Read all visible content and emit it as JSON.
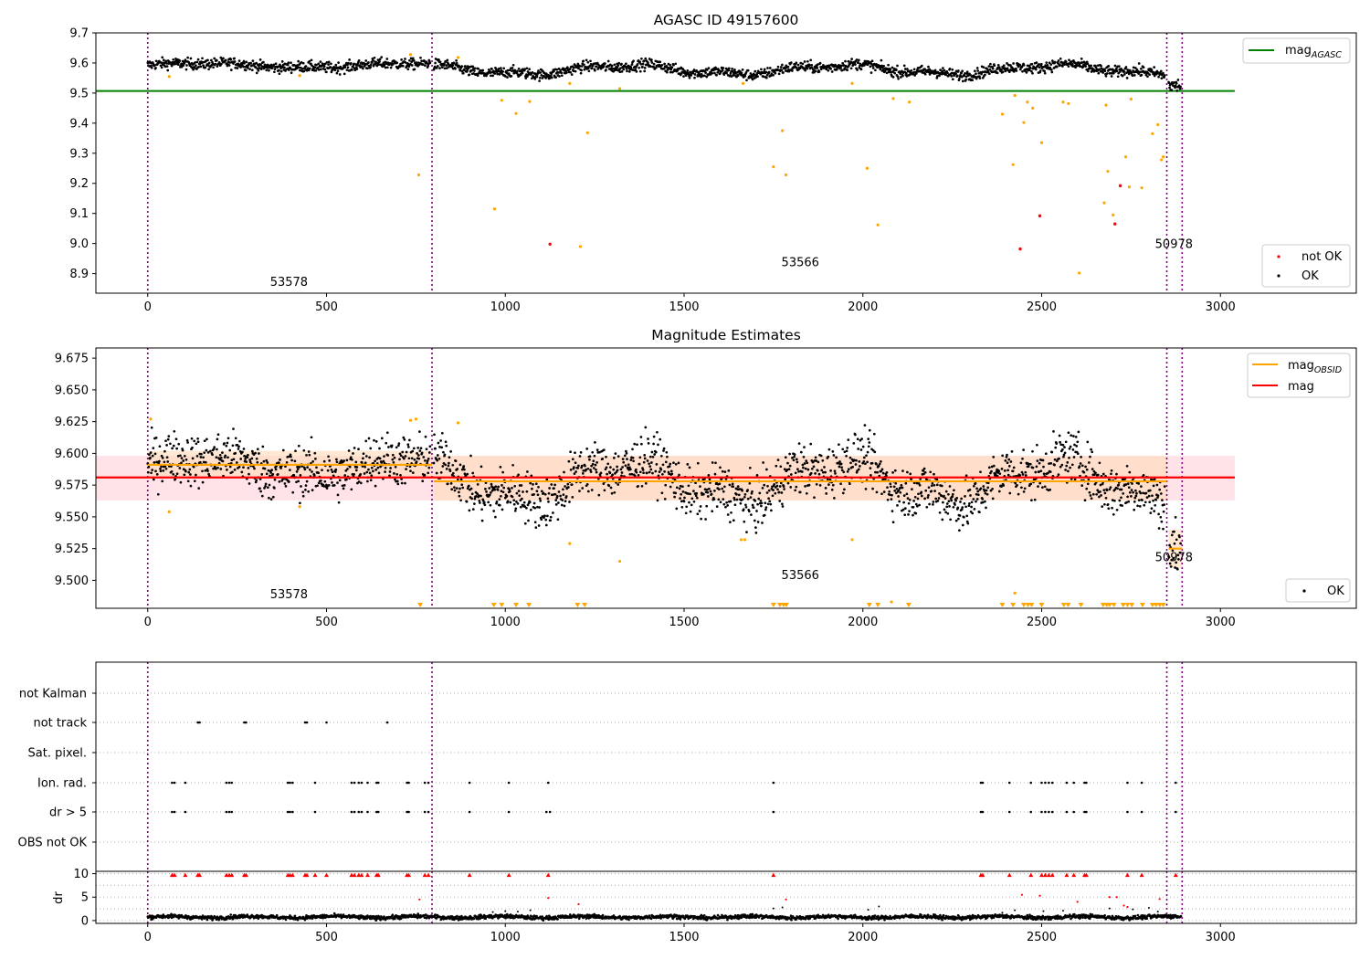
{
  "colors": {
    "ok": "#000000",
    "not_ok": "#ff0000",
    "excluded": "#ffa500",
    "mag_agasc": "#008000",
    "mag": "#ff0000",
    "mag_obsid": "#ffa500",
    "obsid_line": "#800080",
    "band_mag": "#ffc0cb",
    "band_obsid": "#ffdab9",
    "grid": "#b0b0b0"
  },
  "chart_data": [
    {
      "id": "p1",
      "type": "scatter",
      "title": "AGASC ID 49157600",
      "xlabel": "",
      "ylabel": "",
      "xlim": [
        -145,
        3380
      ],
      "ylim": [
        8.835,
        9.7
      ],
      "xticks": [
        "0",
        "500",
        "1000",
        "1500",
        "2000",
        "2500",
        "3000"
      ],
      "yticks": [
        "8.9",
        "9.0",
        "9.1",
        "9.2",
        "9.3",
        "9.4",
        "9.5",
        "9.6",
        "9.7"
      ],
      "obsid_boundaries": [
        0,
        795,
        2850,
        2893
      ],
      "obsid_labels": [
        {
          "text": "53578",
          "x": 395,
          "y": 8.86
        },
        {
          "text": "53566",
          "x": 1825,
          "y": 8.925
        },
        {
          "text": "50978",
          "x": 2870,
          "y": 8.985
        }
      ],
      "lines": [
        {
          "name": "mag_AGASC",
          "color_key": "mag_agasc",
          "x": [
            -145,
            3040
          ],
          "y": [
            9.507,
            9.507
          ]
        }
      ],
      "legend_lines": {
        "main": "mag",
        "sub": "AGASC"
      },
      "legend_points": [
        "not OK",
        "OK"
      ],
      "ok_series": {
        "segments": [
          {
            "x0": 0,
            "x1": 790,
            "mean": 9.592,
            "amp": 0.008,
            "noise": 0.009
          },
          {
            "x0": 800,
            "x1": 2845,
            "mean": 9.578,
            "amp": 0.016,
            "noise": 0.009
          },
          {
            "x0": 2855,
            "x1": 2890,
            "mean": 9.525,
            "amp": 0.0,
            "noise": 0.012
          }
        ],
        "step": 1.4
      },
      "excluded_points": [
        [
          60,
          9.555
        ],
        [
          425,
          9.558
        ],
        [
          735,
          9.628
        ],
        [
          758,
          9.228
        ],
        [
          868,
          9.618
        ],
        [
          970,
          9.115
        ],
        [
          990,
          9.476
        ],
        [
          1030,
          9.432
        ],
        [
          1068,
          9.472
        ],
        [
          1180,
          9.532
        ],
        [
          1210,
          8.99
        ],
        [
          1230,
          9.368
        ],
        [
          1320,
          9.515
        ],
        [
          1665,
          9.532
        ],
        [
          1750,
          9.255
        ],
        [
          1775,
          9.375
        ],
        [
          1785,
          9.228
        ],
        [
          1970,
          9.532
        ],
        [
          2012,
          9.25
        ],
        [
          2042,
          9.062
        ],
        [
          2085,
          9.482
        ],
        [
          2130,
          9.47
        ],
        [
          2390,
          9.43
        ],
        [
          2420,
          9.262
        ],
        [
          2425,
          9.492
        ],
        [
          2450,
          9.402
        ],
        [
          2460,
          9.47
        ],
        [
          2475,
          9.45
        ],
        [
          2500,
          9.335
        ],
        [
          2560,
          9.47
        ],
        [
          2575,
          9.465
        ],
        [
          2605,
          8.902
        ],
        [
          2675,
          9.135
        ],
        [
          2680,
          9.46
        ],
        [
          2685,
          9.24
        ],
        [
          2700,
          9.095
        ],
        [
          2735,
          9.288
        ],
        [
          2745,
          9.188
        ],
        [
          2750,
          9.48
        ],
        [
          2780,
          9.185
        ],
        [
          2810,
          9.365
        ],
        [
          2825,
          9.395
        ],
        [
          2835,
          9.278
        ],
        [
          2840,
          9.288
        ]
      ],
      "notok_points": [
        [
          1125,
          8.998
        ],
        [
          2440,
          8.982
        ],
        [
          2495,
          9.092
        ],
        [
          2705,
          9.065
        ],
        [
          2720,
          9.192
        ]
      ]
    },
    {
      "id": "p2",
      "type": "scatter",
      "title": "Magnitude Estimates",
      "xlabel": "",
      "ylabel": "",
      "xlim": [
        -145,
        3380
      ],
      "ylim": [
        9.478,
        9.683
      ],
      "xticks": [
        "0",
        "500",
        "1000",
        "1500",
        "2000",
        "2500",
        "3000"
      ],
      "yticks": [
        "9.500",
        "9.525",
        "9.550",
        "9.575",
        "9.600",
        "9.625",
        "9.650",
        "9.675"
      ],
      "obsid_boundaries": [
        0,
        795,
        2850,
        2893
      ],
      "obsid_labels": [
        {
          "text": "53578",
          "x": 395,
          "y": 9.486
        },
        {
          "text": "53566",
          "x": 1825,
          "y": 9.501
        },
        {
          "text": "50978",
          "x": 2870,
          "y": 9.515
        }
      ],
      "bands": [
        {
          "color_key": "band_mag",
          "x": [
            -145,
            3040
          ],
          "y": [
            9.563,
            9.598
          ],
          "opacity": 0.45
        },
        {
          "color_key": "band_obsid",
          "x": [
            0,
            795
          ],
          "y": [
            9.582,
            9.602
          ],
          "opacity": 0.6
        },
        {
          "color_key": "band_obsid",
          "x": [
            800,
            2850
          ],
          "y": [
            9.563,
            9.598
          ],
          "opacity": 0.6
        },
        {
          "color_key": "band_obsid",
          "x": [
            2855,
            2893
          ],
          "y": [
            9.51,
            9.54
          ],
          "opacity": 0.6
        }
      ],
      "lines": [
        {
          "name": "mag",
          "color_key": "mag",
          "x": [
            -145,
            3040
          ],
          "y": [
            9.581,
            9.581
          ]
        },
        {
          "name": "mag_OBSID",
          "color_key": "mag_obsid",
          "x": [
            0,
            795
          ],
          "y": [
            9.591,
            9.591
          ]
        },
        {
          "name": "mag_OBSID",
          "color_key": "mag_obsid",
          "x": [
            800,
            2850
          ],
          "y": [
            9.578,
            9.578
          ]
        },
        {
          "name": "mag_OBSID",
          "color_key": "mag_obsid",
          "x": [
            2855,
            2893
          ],
          "y": [
            9.525,
            9.525
          ]
        }
      ],
      "legend_lines": [
        {
          "main": "mag",
          "sub": "OBSID",
          "color_key": "mag_obsid"
        },
        {
          "main": "mag",
          "sub": "",
          "color_key": "mag"
        }
      ],
      "legend_points": [
        "OK"
      ],
      "ok_series": {
        "segments": [
          {
            "x0": 0,
            "x1": 790,
            "mean": 9.59,
            "amp": 0.008,
            "noise": 0.01
          },
          {
            "x0": 800,
            "x1": 2845,
            "mean": 9.578,
            "amp": 0.016,
            "noise": 0.01
          },
          {
            "x0": 2855,
            "x1": 2890,
            "mean": 9.523,
            "amp": 0.0,
            "noise": 0.014
          }
        ],
        "step": 1.4
      },
      "excluded_points": [
        [
          8,
          9.627
        ],
        [
          60,
          9.554
        ],
        [
          425,
          9.558
        ],
        [
          735,
          9.626
        ],
        [
          750,
          9.627
        ],
        [
          868,
          9.624
        ],
        [
          1180,
          9.529
        ],
        [
          1320,
          9.515
        ],
        [
          1660,
          9.532
        ],
        [
          1670,
          9.532
        ],
        [
          1970,
          9.532
        ],
        [
          2080,
          9.483
        ],
        [
          2425,
          9.49
        ]
      ],
      "triangle_x": [
        762,
        968,
        990,
        1030,
        1066,
        1202,
        1222,
        1750,
        1768,
        1778,
        1786,
        2018,
        2042,
        2128,
        2390,
        2420,
        2450,
        2462,
        2472,
        2500,
        2562,
        2574,
        2610,
        2672,
        2682,
        2690,
        2702,
        2728,
        2740,
        2752,
        2782,
        2810,
        2820,
        2830,
        2840
      ]
    },
    {
      "id": "p3",
      "type": "scatter",
      "title": "",
      "xlabel": "",
      "ylabel": "",
      "xlim": [
        -145,
        3380
      ],
      "categories": [
        "not Kalman",
        "not track",
        "Sat. pixel.",
        "Ion. rad.",
        "dr > 5",
        "OBS not OK"
      ],
      "obsid_boundaries": [
        0,
        795,
        2850,
        2893
      ],
      "flag_points": {
        "not_track": [
          140,
          145,
          270,
          275,
          440,
          445,
          500,
          670
        ],
        "ion_rad": [
          68,
          75,
          105,
          220,
          228,
          235,
          392,
          398,
          405,
          468,
          570,
          578,
          590,
          598,
          615,
          640,
          645,
          725,
          730,
          775,
          785,
          900,
          1010,
          1120,
          1750,
          2330,
          2335,
          2410,
          2470,
          2500,
          2510,
          2520,
          2530,
          2570,
          2590,
          2620,
          2625,
          2740,
          2780,
          2875
        ],
        "dr5": [
          68,
          75,
          105,
          220,
          228,
          235,
          392,
          398,
          405,
          468,
          570,
          578,
          590,
          598,
          615,
          640,
          645,
          725,
          730,
          775,
          785,
          900,
          1010,
          1115,
          1125,
          1750,
          2330,
          2335,
          2410,
          2470,
          2500,
          2510,
          2520,
          2530,
          2570,
          2590,
          2620,
          2625,
          2740,
          2780,
          2875
        ]
      }
    },
    {
      "id": "p4",
      "type": "scatter",
      "title": "",
      "xlabel": "",
      "ylabel": "dr",
      "xlim": [
        -145,
        3380
      ],
      "ylim": [
        -0.6,
        10.5
      ],
      "xticks": [
        "0",
        "500",
        "1000",
        "1500",
        "2000",
        "2500",
        "3000"
      ],
      "yticks": [
        "0",
        "5",
        "10"
      ],
      "obsid_boundaries": [
        0,
        795,
        2850,
        2893
      ],
      "clip_points": [
        68,
        75,
        105,
        140,
        145,
        220,
        228,
        235,
        270,
        275,
        392,
        398,
        405,
        440,
        445,
        468,
        500,
        570,
        578,
        590,
        598,
        615,
        640,
        645,
        725,
        730,
        775,
        785,
        900,
        1010,
        1120,
        1750,
        2330,
        2335,
        2410,
        2470,
        2500,
        2510,
        2520,
        2530,
        2570,
        2590,
        2620,
        2625,
        2740,
        2780,
        2875
      ],
      "high_points": [
        [
          760,
          4.5
        ],
        [
          1120,
          4.8
        ],
        [
          1205,
          3.5
        ],
        [
          1785,
          4.5
        ],
        [
          2445,
          5.5
        ],
        [
          2495,
          5.3
        ],
        [
          2600,
          4.0
        ],
        [
          2690,
          5.0
        ],
        [
          2710,
          5.0
        ],
        [
          2730,
          3.2
        ],
        [
          2740,
          2.9
        ],
        [
          2830,
          4.6
        ]
      ],
      "mid_points": [
        [
          965,
          1.8
        ],
        [
          1000,
          2.0
        ],
        [
          1035,
          1.9
        ],
        [
          1070,
          2.2
        ],
        [
          1750,
          2.6
        ],
        [
          1775,
          2.8
        ],
        [
          2015,
          2.3
        ],
        [
          2045,
          3.0
        ],
        [
          2390,
          1.7
        ],
        [
          2425,
          2.2
        ],
        [
          2505,
          2.0
        ],
        [
          2560,
          2.1
        ],
        [
          2690,
          2.6
        ],
        [
          2755,
          2.4
        ],
        [
          2800,
          2.7
        ],
        [
          2825,
          1.9
        ]
      ],
      "baseline": {
        "mean": 0.75,
        "amp": 0.35,
        "step": 1.4,
        "xmax": 2890
      }
    }
  ]
}
